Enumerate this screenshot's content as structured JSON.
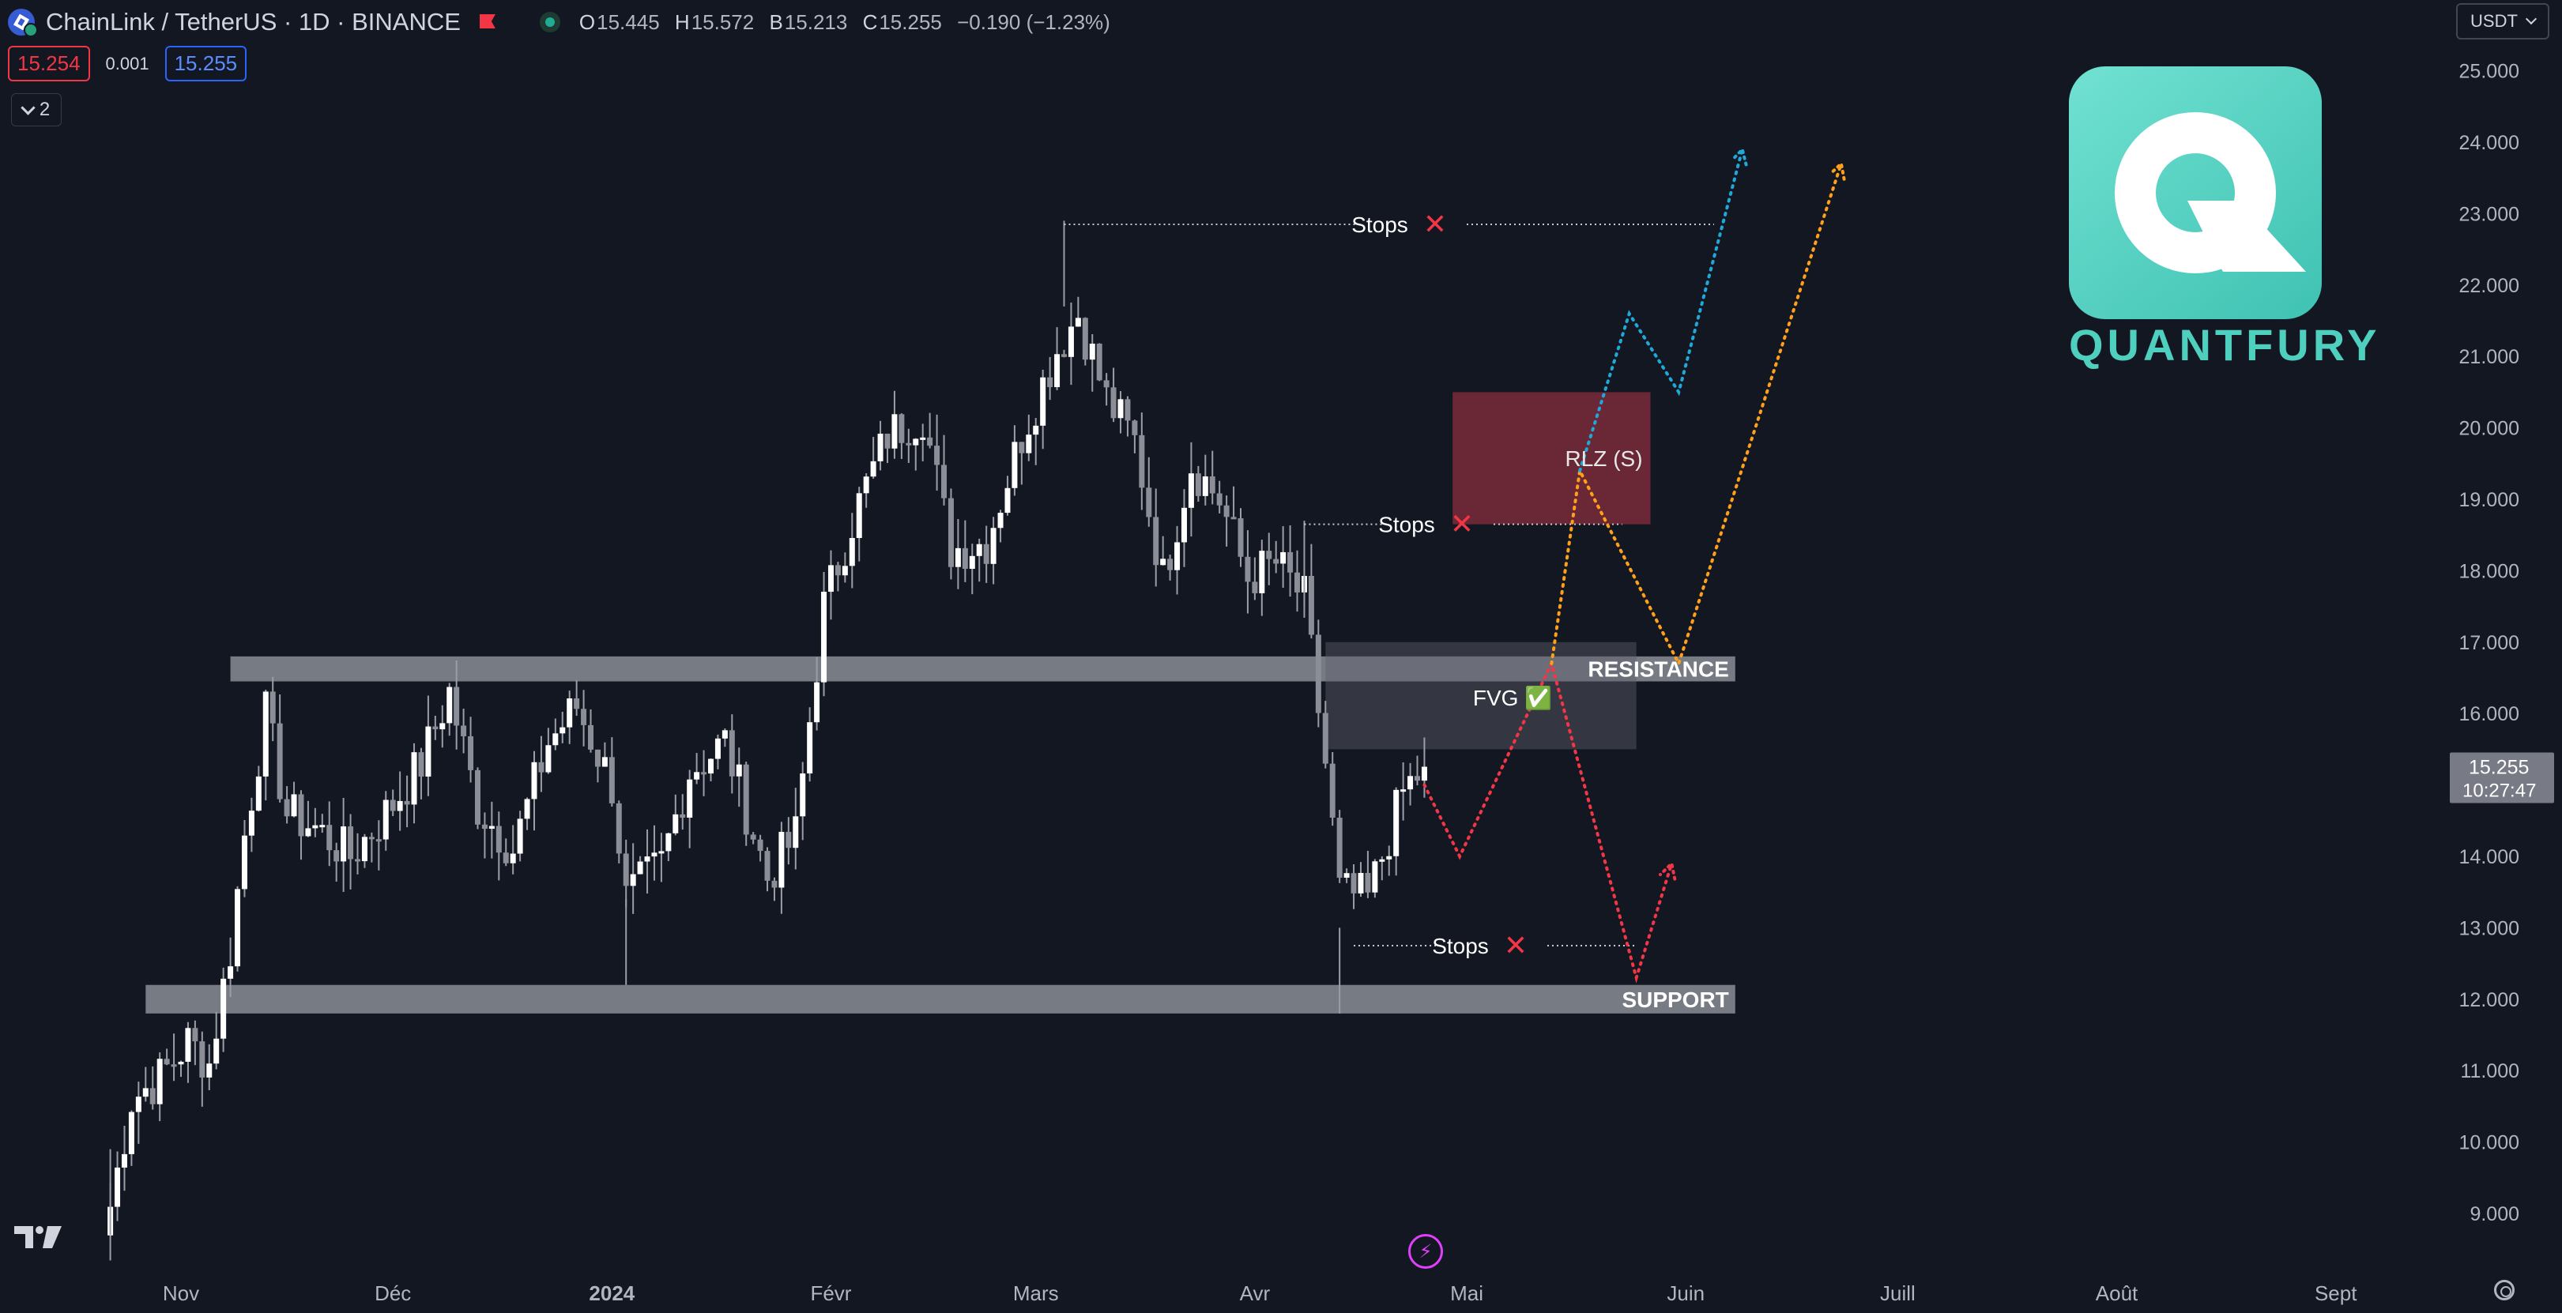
{
  "header": {
    "symbol_title": "ChainLink / TetherUS · 1D · BINANCE",
    "ohlc": {
      "o_label": "O",
      "o": "15.445",
      "h_label": "H",
      "h": "15.572",
      "b_label": "B",
      "b": "15.213",
      "c_label": "C",
      "c": "15.255",
      "change": "−0.190 (−1.23%)"
    },
    "sell_price": "15.254",
    "spread": "0.001",
    "buy_price": "15.255",
    "collapse_count": "2",
    "currency": "USDT"
  },
  "logo": {
    "text": "QUANTFURY"
  },
  "colors": {
    "background": "#131722",
    "candle": "#ffffff",
    "wick": "#9b9ea6",
    "zone": "#8a8d94",
    "rlz": "#7a2a38",
    "red_path": "#f23645",
    "orange_path": "#ff9f1a",
    "blue_path": "#1fa8d8",
    "stops_cross": "#f23645"
  },
  "chart_data": {
    "type": "candlestick",
    "y_axis_ticks": [
      "25.000",
      "24.000",
      "23.000",
      "22.000",
      "21.000",
      "20.000",
      "19.000",
      "18.000",
      "17.000",
      "16.000",
      "15.000",
      "14.000",
      "13.000",
      "12.000",
      "11.000",
      "10.000",
      "9.000"
    ],
    "y_values": [
      25,
      24,
      23,
      22,
      21,
      20,
      19,
      18,
      17,
      16,
      15,
      14,
      13,
      12,
      11,
      10,
      9
    ],
    "x_axis_labels": [
      {
        "label": "Nov",
        "date": "2023-11-01",
        "bold": false
      },
      {
        "label": "Déc",
        "date": "2023-12-01",
        "bold": false
      },
      {
        "label": "2024",
        "date": "2024-01-01",
        "bold": true
      },
      {
        "label": "Févr",
        "date": "2024-02-01",
        "bold": false
      },
      {
        "label": "Mars",
        "date": "2024-03-01",
        "bold": false
      },
      {
        "label": "Avr",
        "date": "2024-04-01",
        "bold": false
      },
      {
        "label": "Mai",
        "date": "2024-05-01",
        "bold": false
      },
      {
        "label": "Juin",
        "date": "2024-06-01",
        "bold": false
      },
      {
        "label": "Juill",
        "date": "2024-07-01",
        "bold": false
      },
      {
        "label": "Août",
        "date": "2024-08-01",
        "bold": false
      },
      {
        "label": "Sept",
        "date": "2024-09-01",
        "bold": false
      }
    ],
    "last_price": "15.255",
    "countdown": "10:27:47",
    "close_series": [
      {
        "date": "2023-10-22",
        "close": 9.1
      },
      {
        "date": "2023-10-25",
        "close": 10.6
      },
      {
        "date": "2023-10-29",
        "close": 10.9
      },
      {
        "date": "2023-11-02",
        "close": 11.4
      },
      {
        "date": "2023-11-05",
        "close": 11.1
      },
      {
        "date": "2023-11-08",
        "close": 12.7
      },
      {
        "date": "2023-11-10",
        "close": 14.3
      },
      {
        "date": "2023-11-13",
        "close": 16.0
      },
      {
        "date": "2023-11-16",
        "close": 14.6
      },
      {
        "date": "2023-11-20",
        "close": 14.4
      },
      {
        "date": "2023-11-25",
        "close": 14.0
      },
      {
        "date": "2023-11-30",
        "close": 14.6
      },
      {
        "date": "2023-12-05",
        "close": 15.3
      },
      {
        "date": "2023-12-09",
        "close": 16.3
      },
      {
        "date": "2023-12-13",
        "close": 14.7
      },
      {
        "date": "2023-12-18",
        "close": 14.1
      },
      {
        "date": "2023-12-23",
        "close": 15.6
      },
      {
        "date": "2023-12-27",
        "close": 16.1
      },
      {
        "date": "2024-01-01",
        "close": 15.0
      },
      {
        "date": "2024-01-03",
        "close": 13.4
      },
      {
        "date": "2024-01-08",
        "close": 13.9
      },
      {
        "date": "2024-01-12",
        "close": 15.2
      },
      {
        "date": "2024-01-17",
        "close": 15.6
      },
      {
        "date": "2024-01-23",
        "close": 13.7
      },
      {
        "date": "2024-01-27",
        "close": 14.3
      },
      {
        "date": "2024-01-31",
        "close": 17.5
      },
      {
        "date": "2024-02-04",
        "close": 18.7
      },
      {
        "date": "2024-02-09",
        "close": 19.9
      },
      {
        "date": "2024-02-14",
        "close": 20.2
      },
      {
        "date": "2024-02-18",
        "close": 18.3
      },
      {
        "date": "2024-02-23",
        "close": 18.4
      },
      {
        "date": "2024-02-28",
        "close": 19.9
      },
      {
        "date": "2024-03-04",
        "close": 21.1
      },
      {
        "date": "2024-03-07",
        "close": 21.6
      },
      {
        "date": "2024-03-11",
        "close": 20.4
      },
      {
        "date": "2024-03-15",
        "close": 19.8
      },
      {
        "date": "2024-03-19",
        "close": 17.9
      },
      {
        "date": "2024-03-23",
        "close": 19.5
      },
      {
        "date": "2024-03-27",
        "close": 19.0
      },
      {
        "date": "2024-03-31",
        "close": 17.9
      },
      {
        "date": "2024-04-04",
        "close": 18.1
      },
      {
        "date": "2024-04-08",
        "close": 17.6
      },
      {
        "date": "2024-04-11",
        "close": 15.3
      },
      {
        "date": "2024-04-13",
        "close": 13.5
      },
      {
        "date": "2024-04-17",
        "close": 13.4
      },
      {
        "date": "2024-04-19",
        "close": 14.0
      },
      {
        "date": "2024-04-22",
        "close": 14.9
      },
      {
        "date": "2024-04-25",
        "close": 15.255
      }
    ],
    "key_wicks": [
      {
        "date": "2024-03-05",
        "high": 22.9
      },
      {
        "date": "2024-04-08",
        "high": 18.7
      },
      {
        "date": "2024-04-13",
        "low": 11.8
      },
      {
        "date": "2024-01-03",
        "low": 12.2
      },
      {
        "date": "2023-10-22",
        "low": 8.7
      }
    ],
    "zones": [
      {
        "name": "RESISTANCE",
        "from": "2023-11-08",
        "to": "2024-06-08",
        "low": 16.45,
        "high": 16.8
      },
      {
        "name": "SUPPORT",
        "from": "2023-10-27",
        "to": "2024-06-08",
        "low": 11.8,
        "high": 12.2
      },
      {
        "name": "FVG",
        "label": "FVG",
        "emoji": "✅",
        "from": "2024-04-11",
        "to": "2024-05-25",
        "low": 15.5,
        "high": 17.0
      },
      {
        "name": "RLZ",
        "label": "RLZ (S)",
        "from": "2024-04-29",
        "to": "2024-05-27",
        "low": 18.65,
        "high": 20.5
      }
    ],
    "stops": [
      {
        "label": "Stops",
        "mark": "✕",
        "price": 22.85,
        "from": "2024-03-05",
        "to": "2024-06-05"
      },
      {
        "label": "Stops",
        "mark": "✕",
        "price": 18.65,
        "from": "2024-04-08",
        "to": "2024-05-23"
      },
      {
        "label": "Stops",
        "mark": "✕",
        "price": 12.75,
        "from": "2024-04-15",
        "to": "2024-05-25"
      }
    ],
    "projections": [
      {
        "name": "red",
        "points": [
          [
            "2024-04-25",
            15.0
          ],
          [
            "2024-04-30",
            14.0
          ],
          [
            "2024-05-13",
            16.7
          ],
          [
            "2024-05-25",
            12.3
          ],
          [
            "2024-05-30",
            13.9
          ]
        ]
      },
      {
        "name": "orange",
        "points": [
          [
            "2024-05-13",
            16.7
          ],
          [
            "2024-05-17",
            19.4
          ],
          [
            "2024-05-31",
            16.7
          ],
          [
            "2024-06-23",
            23.7
          ]
        ]
      },
      {
        "name": "blue",
        "points": [
          [
            "2024-05-17",
            19.4
          ],
          [
            "2024-05-24",
            21.6
          ],
          [
            "2024-05-31",
            20.5
          ],
          [
            "2024-06-09",
            23.9
          ]
        ]
      }
    ]
  }
}
